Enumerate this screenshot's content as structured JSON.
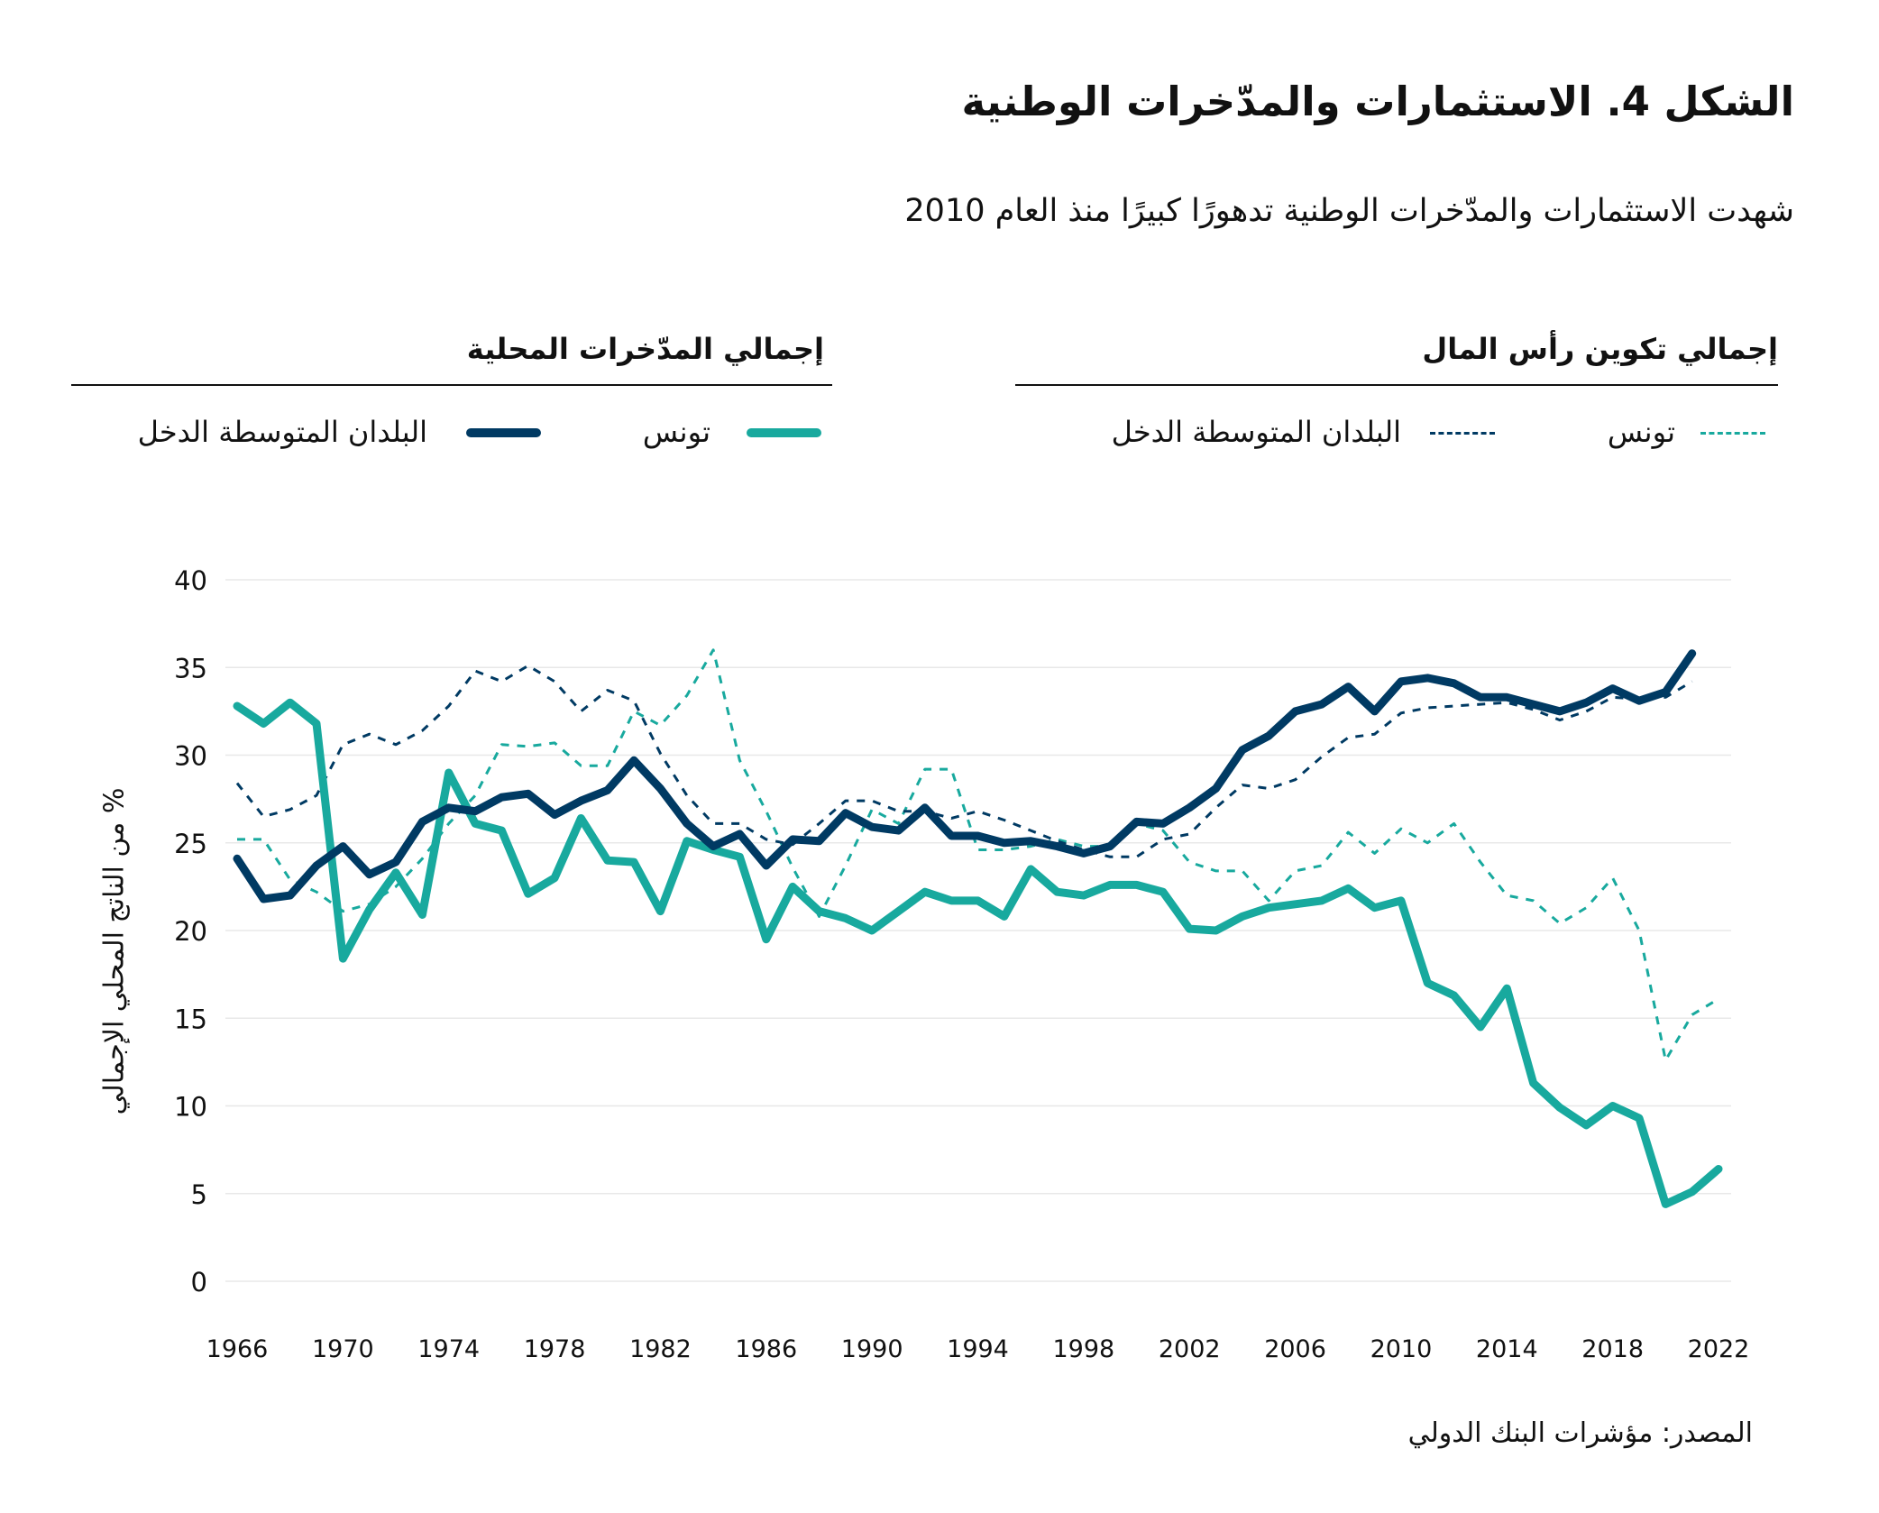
{
  "header": {
    "title": "الشكل 4. الاستثمارات والمدّخرات الوطنية",
    "subtitle": "شهدت الاستثمارات والمدّخرات الوطنية تدهورًا كبيرًا منذ العام 2010"
  },
  "legend": {
    "groups": [
      {
        "title": "إجمالي تكوين رأس المال",
        "style": "dashed",
        "items": [
          {
            "label": "تونس",
            "color": "#18a99e"
          },
          {
            "label": "البلدان المتوسطة الدخل",
            "color": "#003a63"
          }
        ]
      },
      {
        "title": "إجمالي المدّخرات المحلية",
        "style": "solid",
        "items": [
          {
            "label": "تونس",
            "color": "#18a99e"
          },
          {
            "label": "البلدان المتوسطة الدخل",
            "color": "#003a63"
          }
        ]
      }
    ]
  },
  "source": "المصدر: مؤشرات البنك الدولي",
  "chart_data": {
    "type": "line",
    "title": "الشكل 4. الاستثمارات والمدّخرات الوطنية",
    "ylabel": "% من الناتج المحلي الإجمالي",
    "xlabel": "",
    "ylim": [
      0,
      40
    ],
    "xlim": [
      1966,
      2022
    ],
    "yticks": [
      "0",
      "5",
      "10",
      "15",
      "20",
      "25",
      "30",
      "35",
      "40"
    ],
    "xticks": [
      "1966",
      "1970",
      "1974",
      "1978",
      "1982",
      "1986",
      "1990",
      "1994",
      "1998",
      "2002",
      "2006",
      "2010",
      "2014",
      "2018",
      "2022"
    ],
    "grid": true,
    "legend_placement": "top",
    "x_start": 1966,
    "series": [
      {
        "name": "إجمالي تكوين رأس المال - تونس",
        "color": "#18a99e",
        "style": "dashed",
        "values": [
          25.2,
          25.2,
          22.9,
          22.2,
          21.1,
          21.5,
          22.5,
          24.1,
          26.1,
          27.7,
          30.6,
          30.5,
          30.7,
          29.4,
          29.4,
          32.5,
          31.7,
          33.4,
          36.0,
          29.7,
          26.8,
          23.6,
          20.8,
          23.7,
          26.9,
          26.1,
          29.2,
          29.2,
          24.6,
          24.6,
          24.8,
          25.2,
          24.8,
          24.8,
          26.1,
          25.7,
          23.9,
          23.4,
          23.4,
          21.7,
          23.4,
          23.7,
          25.6,
          24.4,
          25.8,
          25.0,
          26.1,
          23.9,
          22.0,
          21.7,
          20.4,
          21.3,
          23.0,
          20.0,
          12.6,
          15.2,
          16.1
        ]
      },
      {
        "name": "إجمالي تكوين رأس المال - البلدان المتوسطة الدخل",
        "color": "#003a63",
        "style": "dashed",
        "values": [
          28.4,
          26.5,
          26.9,
          27.7,
          30.6,
          31.2,
          30.6,
          31.4,
          32.8,
          34.8,
          34.2,
          35.1,
          34.2,
          32.5,
          33.7,
          33.1,
          30.1,
          27.7,
          26.1,
          26.1,
          25.2,
          24.9,
          26.1,
          27.4,
          27.4,
          26.8,
          26.8,
          26.4,
          26.8,
          26.3,
          25.7,
          25.1,
          24.6,
          24.2,
          24.2,
          25.2,
          25.5,
          27.0,
          28.3,
          28.1,
          28.6,
          29.9,
          31.0,
          31.2,
          32.4,
          32.7,
          32.8,
          32.9,
          33.0,
          32.6,
          32.0,
          32.5,
          33.3,
          33.2,
          33.3,
          34.2
        ]
      },
      {
        "name": "إجمالي المدّخرات المحلية - تونس",
        "color": "#18a99e",
        "style": "solid",
        "values": [
          32.8,
          31.8,
          33.0,
          31.8,
          18.4,
          21.2,
          23.3,
          20.9,
          29.0,
          26.1,
          25.7,
          22.1,
          23.0,
          26.4,
          24.0,
          23.9,
          21.1,
          25.1,
          24.6,
          24.2,
          19.5,
          22.5,
          21.1,
          20.7,
          20.0,
          21.1,
          22.2,
          21.7,
          21.7,
          20.8,
          23.5,
          22.2,
          22.0,
          22.6,
          22.6,
          22.2,
          20.1,
          20.0,
          20.8,
          21.3,
          21.5,
          21.7,
          22.4,
          21.3,
          21.7,
          17.0,
          16.3,
          14.5,
          16.7,
          11.3,
          9.9,
          8.9,
          10.0,
          9.3,
          4.4,
          5.1,
          6.4
        ]
      },
      {
        "name": "إجمالي المدّخرات المحلية - البلدان المتوسطة الدخل",
        "color": "#003a63",
        "style": "solid",
        "values": [
          24.1,
          21.8,
          22.0,
          23.7,
          24.8,
          23.2,
          23.9,
          26.2,
          27.0,
          26.8,
          27.6,
          27.8,
          26.6,
          27.4,
          28.0,
          29.7,
          28.1,
          26.1,
          24.8,
          25.5,
          23.7,
          25.2,
          25.1,
          26.7,
          25.9,
          25.7,
          27.0,
          25.4,
          25.4,
          25.0,
          25.1,
          24.8,
          24.4,
          24.8,
          26.2,
          26.1,
          27.0,
          28.1,
          30.3,
          31.1,
          32.5,
          32.9,
          33.9,
          32.5,
          34.2,
          34.4,
          34.1,
          33.3,
          33.3,
          32.9,
          32.5,
          33.0,
          33.8,
          33.1,
          33.6,
          35.8
        ]
      }
    ]
  }
}
